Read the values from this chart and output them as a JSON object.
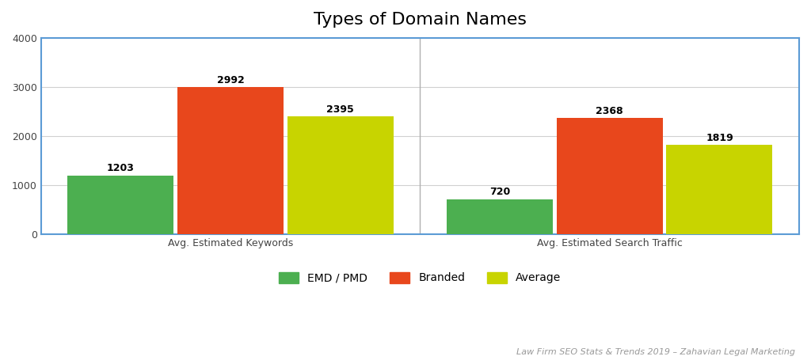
{
  "title": "Types of Domain Names",
  "groups": [
    "Avg. Estimated Keywords",
    "Avg. Estimated Search Traffic"
  ],
  "series": [
    "EMD / PMD",
    "Branded",
    "Average"
  ],
  "values": {
    "Avg. Estimated Keywords": [
      1203,
      2992,
      2395
    ],
    "Avg. Estimated Search Traffic": [
      720,
      2368,
      1819
    ]
  },
  "colors": [
    "#4caf50",
    "#e8471c",
    "#c8d400"
  ],
  "ylim": [
    0,
    4000
  ],
  "yticks": [
    0,
    1000,
    2000,
    3000,
    4000
  ],
  "bar_width": 0.14,
  "background_color": "#ffffff",
  "plot_bg_color": "#ffffff",
  "spine_color": "#5b9bd5",
  "grid_color": "#d0d0d0",
  "divider_color": "#b0b0b0",
  "title_fontsize": 16,
  "label_fontsize": 9,
  "value_fontsize": 9,
  "legend_fontsize": 10,
  "footer_text": "Law Firm SEO Stats & Trends 2019 – Zahavian Legal Marketing",
  "footer_fontsize": 8,
  "group_centers": [
    0.25,
    0.75
  ],
  "xlim": [
    0,
    1
  ]
}
